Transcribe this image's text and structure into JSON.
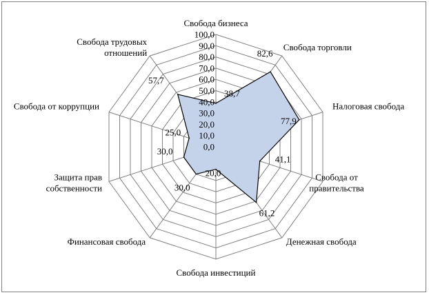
{
  "chart_data": {
    "type": "radar",
    "categories": [
      "Свобода бизнеса",
      "Свобода торговли",
      "Налоговая свобода",
      "Свобода от правительства",
      "Денежная свобода",
      "Свобода инвестиций",
      "Финансовая свобода",
      "Защита прав собственности",
      "Свобода от коррупции",
      "Свобода трудовых отношений"
    ],
    "series": [
      {
        "values": [
          38.7,
          82.6,
          77.9,
          41.1,
          61.2,
          20.0,
          30.0,
          30.0,
          25.0,
          57.7
        ],
        "data_labels": [
          "38,7",
          "82,6",
          "77,9",
          "41,1",
          "61,2",
          "20,0",
          "30,0",
          "30,0",
          "25,0",
          "57,7"
        ]
      }
    ],
    "radial_ticks": [
      "0,0",
      "10,0",
      "20,0",
      "30,0",
      "40,0",
      "50,0",
      "60,0",
      "70,0",
      "80,0",
      "90,0",
      "100,0"
    ],
    "rlim": [
      0,
      100
    ],
    "grid": true,
    "legend": "none",
    "colors": {
      "fill": "#c5d3ea",
      "line": "#000000",
      "grid": "#808080",
      "frame": "#7f7f7f"
    }
  }
}
